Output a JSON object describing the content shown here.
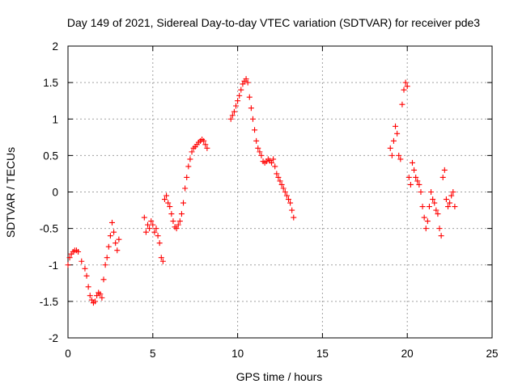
{
  "chart_data": {
    "type": "scatter",
    "title": "Day 149 of 2021, Sidereal Day-to-day VTEC variation (SDTVAR) for receiver pde3",
    "xlabel": "GPS time / hours",
    "ylabel": "SDTVAR / TECUs",
    "xlim": [
      0,
      25
    ],
    "ylim": [
      -2,
      2
    ],
    "x_ticks": [
      0,
      5,
      10,
      15,
      20,
      25
    ],
    "x_tick_labels": [
      "0",
      "5",
      "10",
      "15",
      "20",
      "25"
    ],
    "y_ticks": [
      -2,
      -1.5,
      -1,
      -0.5,
      0,
      0.5,
      1,
      1.5,
      2
    ],
    "y_tick_labels": [
      "-2",
      "-1.5",
      "-1",
      "-0.5",
      "0",
      "0.5",
      "1",
      "1.5",
      "2"
    ],
    "grid": true,
    "marker": "+",
    "color": "#ff0000",
    "series": [
      {
        "name": "SDTVAR",
        "segments": [
          {
            "x": [
              0.0,
              0.1,
              0.2,
              0.3,
              0.4,
              0.5,
              0.6,
              0.8,
              1.0,
              1.1,
              1.2,
              1.3,
              1.4,
              1.5,
              1.6,
              1.7,
              1.8,
              1.9,
              2.0,
              2.1,
              2.2,
              2.3,
              2.4,
              2.5,
              2.6,
              2.7,
              2.8,
              2.9,
              3.0
            ],
            "y": [
              -1.0,
              -0.9,
              -0.85,
              -0.82,
              -0.8,
              -0.8,
              -0.82,
              -0.95,
              -1.05,
              -1.15,
              -1.3,
              -1.42,
              -1.48,
              -1.52,
              -1.5,
              -1.42,
              -1.38,
              -1.4,
              -1.45,
              -1.2,
              -1.0,
              -0.9,
              -0.75,
              -0.6,
              -0.42,
              -0.55,
              -0.7,
              -0.8,
              -0.65
            ]
          },
          {
            "x": [
              4.5,
              4.6,
              4.7,
              4.8,
              4.9,
              5.0,
              5.1,
              5.2,
              5.3,
              5.4,
              5.5,
              5.6,
              5.7,
              5.8,
              5.9,
              6.0,
              6.1,
              6.2,
              6.3,
              6.4,
              6.5,
              6.6,
              6.7,
              6.8,
              6.9,
              7.0,
              7.1,
              7.2,
              7.3,
              7.4,
              7.5,
              7.6,
              7.7,
              7.8,
              7.9,
              8.0,
              8.1,
              8.2
            ],
            "y": [
              -0.35,
              -0.55,
              -0.45,
              -0.5,
              -0.4,
              -0.45,
              -0.55,
              -0.5,
              -0.6,
              -0.7,
              -0.9,
              -0.95,
              -0.1,
              -0.05,
              -0.15,
              -0.2,
              -0.3,
              -0.4,
              -0.48,
              -0.5,
              -0.45,
              -0.4,
              -0.3,
              -0.15,
              0.05,
              0.2,
              0.35,
              0.45,
              0.55,
              0.6,
              0.62,
              0.65,
              0.68,
              0.7,
              0.72,
              0.7,
              0.65,
              0.6
            ]
          },
          {
            "x": [
              9.6,
              9.7,
              9.8,
              9.9,
              10.0,
              10.1,
              10.2,
              10.3,
              10.4,
              10.5,
              10.6,
              10.7,
              10.8,
              10.9,
              11.0,
              11.1,
              11.2,
              11.3,
              11.4,
              11.5,
              11.6,
              11.7,
              11.8,
              11.9,
              12.0,
              12.1,
              12.2,
              12.3,
              12.4,
              12.5,
              12.6,
              12.7,
              12.8,
              12.9,
              13.0,
              13.1,
              13.2,
              13.3
            ],
            "y": [
              1.0,
              1.05,
              1.1,
              1.18,
              1.25,
              1.32,
              1.4,
              1.48,
              1.52,
              1.55,
              1.5,
              1.3,
              1.15,
              1.0,
              0.85,
              0.7,
              0.6,
              0.55,
              0.5,
              0.42,
              0.4,
              0.42,
              0.45,
              0.43,
              0.4,
              0.45,
              0.35,
              0.25,
              0.2,
              0.15,
              0.1,
              0.05,
              0.0,
              -0.05,
              -0.1,
              -0.15,
              -0.25,
              -0.35
            ]
          },
          {
            "x": [
              19.0,
              19.1,
              19.2,
              19.3,
              19.4,
              19.5,
              19.6,
              19.7,
              19.8,
              19.9,
              20.0,
              20.1,
              20.2,
              20.3,
              20.4,
              20.5,
              20.6,
              20.7,
              20.8,
              20.9,
              21.0,
              21.1,
              21.2,
              21.3,
              21.4,
              21.5,
              21.6,
              21.7,
              21.8,
              21.9,
              22.0,
              22.1,
              22.2,
              22.3,
              22.4,
              22.5,
              22.6,
              22.7,
              22.8
            ],
            "y": [
              0.6,
              0.5,
              0.7,
              0.9,
              0.8,
              0.5,
              0.45,
              1.2,
              1.4,
              1.5,
              1.45,
              0.2,
              0.1,
              0.4,
              0.3,
              0.2,
              0.15,
              0.1,
              0.0,
              -0.2,
              -0.35,
              -0.5,
              -0.4,
              -0.2,
              0.0,
              -0.1,
              -0.15,
              -0.25,
              -0.3,
              -0.5,
              -0.6,
              0.2,
              0.3,
              -0.1,
              -0.2,
              -0.15,
              -0.05,
              0.0,
              -0.2
            ]
          }
        ]
      }
    ]
  }
}
